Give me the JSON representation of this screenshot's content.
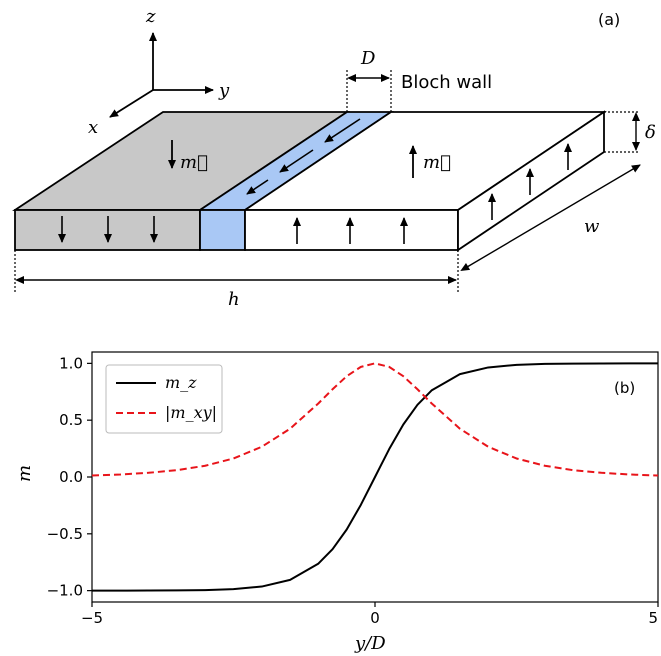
{
  "panel_a": {
    "label": "(a)",
    "axis_z": "z",
    "axis_y": "y",
    "axis_x": "x",
    "dim_D": "D",
    "wall_label": "Bloch wall",
    "dim_delta": "δ",
    "dim_w": "w",
    "dim_h": "h",
    "moment_label": "m⃗",
    "colors": {
      "down_domain": "#c8c8c8",
      "wall": "#a9c8f5",
      "up_domain": "#ffffff"
    }
  },
  "chart_data": {
    "type": "line",
    "panel_label": "(b)",
    "xlabel": "y/D",
    "ylabel": "m",
    "xlim": [
      -5,
      5
    ],
    "ylim": [
      -1.1,
      1.1
    ],
    "x_ticks": [
      "−5",
      "0",
      "5"
    ],
    "y_ticks": [
      "1.0",
      "0.5",
      "0.0",
      "−0.5",
      "−1.0"
    ],
    "y_tick_values": [
      1.0,
      0.5,
      0.0,
      -0.5,
      -1.0
    ],
    "x_tick_values": [
      -5,
      0,
      5
    ],
    "legend_position": "top-left",
    "x": [
      -5,
      -4.5,
      -4,
      -3.5,
      -3,
      -2.5,
      -2,
      -1.5,
      -1,
      -0.75,
      -0.5,
      -0.25,
      0,
      0.25,
      0.5,
      0.75,
      1,
      1.5,
      2,
      2.5,
      3,
      3.5,
      4,
      4.5,
      5
    ],
    "series": [
      {
        "name": "m_z",
        "color": "#000000",
        "dash": "solid",
        "values": [
          -1.0,
          -1.0,
          -0.999,
          -0.998,
          -0.995,
          -0.987,
          -0.964,
          -0.905,
          -0.762,
          -0.635,
          -0.462,
          -0.245,
          0.0,
          0.245,
          0.462,
          0.635,
          0.762,
          0.905,
          0.964,
          0.987,
          0.995,
          0.998,
          0.999,
          1.0,
          1.0
        ]
      },
      {
        "name": "|m_xy|",
        "color": "#e8141a",
        "dash": "dashed",
        "values": [
          0.013,
          0.022,
          0.037,
          0.06,
          0.099,
          0.163,
          0.266,
          0.425,
          0.648,
          0.772,
          0.887,
          0.969,
          1.0,
          0.969,
          0.887,
          0.772,
          0.648,
          0.425,
          0.266,
          0.163,
          0.099,
          0.06,
          0.037,
          0.022,
          0.013
        ]
      }
    ]
  }
}
